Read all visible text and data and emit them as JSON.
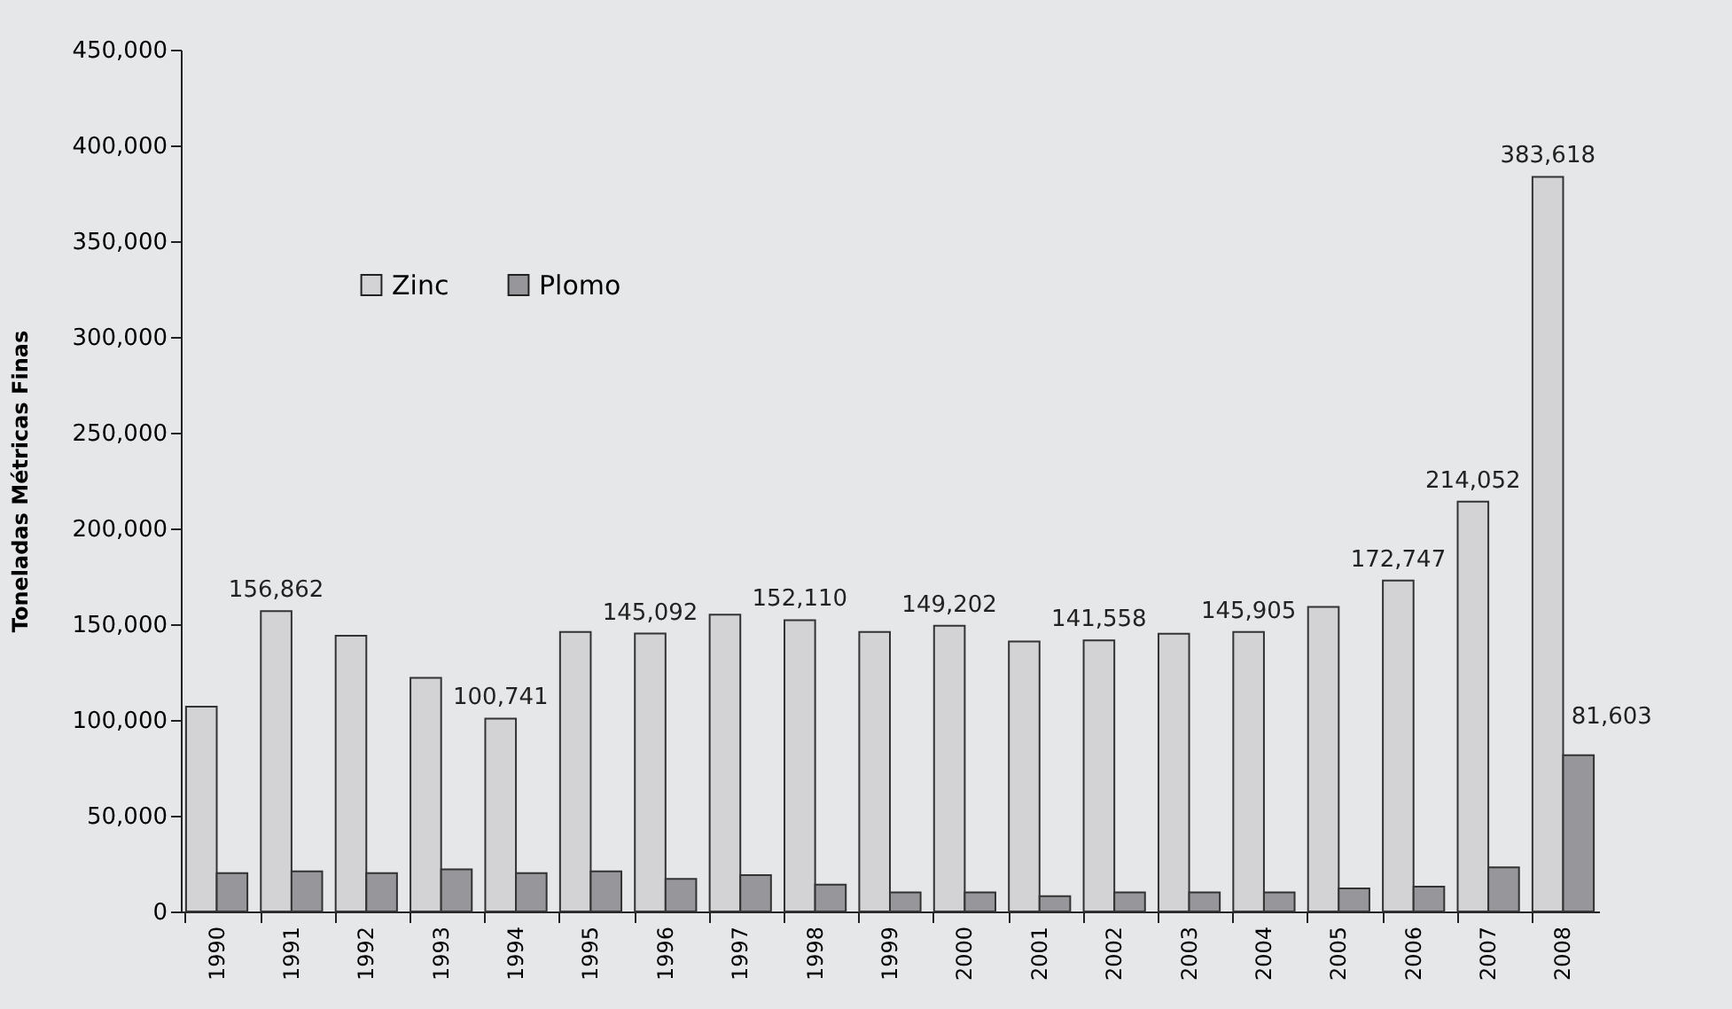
{
  "chart_data": {
    "type": "bar",
    "ylabel": "Toneladas Métricas Finas",
    "categories": [
      "1990",
      "1991",
      "1992",
      "1993",
      "1994",
      "1995",
      "1996",
      "1997",
      "1998",
      "1999",
      "2000",
      "2001",
      "2002",
      "2003",
      "2004",
      "2005",
      "2006",
      "2007",
      "2008"
    ],
    "series": [
      {
        "name": "Zinc",
        "color": "#d3d3d5",
        "values": [
          107000,
          156862,
          144000,
          122000,
          100741,
          146000,
          145092,
          155000,
          152110,
          146000,
          149202,
          141000,
          141558,
          145000,
          145905,
          159000,
          172747,
          214052,
          383618
        ],
        "value_labels": [
          null,
          "156,862",
          null,
          null,
          "100,741",
          null,
          "145,092",
          null,
          "152,110",
          null,
          "149,202",
          null,
          "141,558",
          null,
          "145,905",
          null,
          "172,747",
          "214,052",
          "383,618"
        ]
      },
      {
        "name": "Plomo",
        "color": "#97979b",
        "values": [
          20000,
          21000,
          20000,
          22000,
          20000,
          21000,
          17000,
          19000,
          14000,
          10000,
          10000,
          8000,
          10000,
          10000,
          10000,
          12000,
          13000,
          23000,
          81603
        ],
        "value_labels": [
          null,
          null,
          null,
          null,
          null,
          null,
          null,
          null,
          null,
          null,
          null,
          null,
          null,
          null,
          null,
          null,
          null,
          null,
          "81,603"
        ]
      }
    ],
    "ylim": [
      0,
      450000
    ],
    "yticks": [
      0,
      {
        "value": 50000,
        "label": "50,000"
      },
      {
        "value": 100000,
        "label": "100,000"
      },
      {
        "value": 150000,
        "label": "150,000"
      },
      {
        "value": 200000,
        "label": "200,000"
      },
      {
        "value": 250000,
        "label": "250,000"
      },
      {
        "value": 300000,
        "label": "300,000"
      },
      {
        "value": 350000,
        "label": "350,000"
      },
      {
        "value": 400000,
        "label": "400,000"
      },
      {
        "value": 450000,
        "label": "450,000"
      }
    ],
    "grid": false,
    "legend": "top left"
  }
}
